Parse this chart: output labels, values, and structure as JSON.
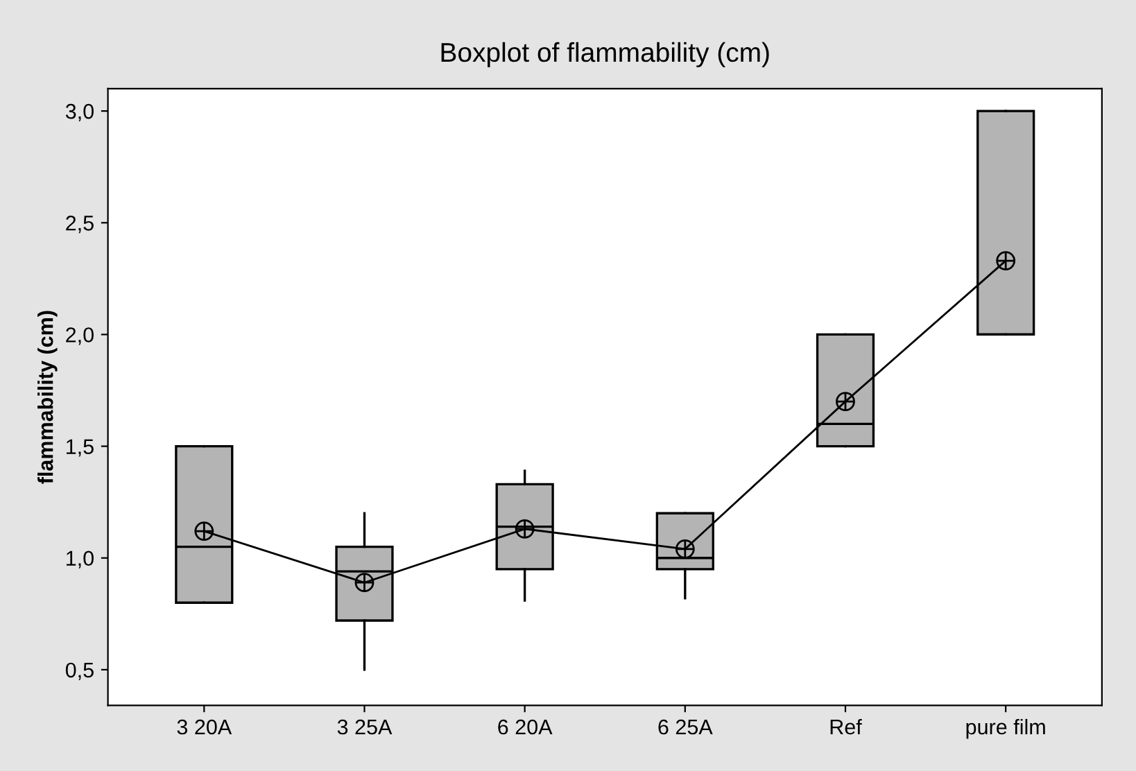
{
  "chart_data": {
    "type": "box",
    "title": "Boxplot of flammability (cm)",
    "ylabel": "flammability (cm)",
    "categories": [
      "3 20A",
      "3 25A",
      "6 20A",
      "6 25A",
      "Ref",
      "pure film"
    ],
    "boxes": [
      {
        "low": 0.8,
        "q1": 0.8,
        "median": 1.05,
        "q3": 1.5,
        "high": 1.5
      },
      {
        "low": 0.5,
        "q1": 0.72,
        "median": 0.94,
        "q3": 1.05,
        "high": 1.2
      },
      {
        "low": 0.81,
        "q1": 0.95,
        "median": 1.14,
        "q3": 1.33,
        "high": 1.39
      },
      {
        "low": 0.82,
        "q1": 0.95,
        "median": 1.0,
        "q3": 1.2,
        "high": 1.2
      },
      {
        "low": 1.5,
        "q1": 1.5,
        "median": 1.6,
        "q3": 2.0,
        "high": 2.0
      },
      {
        "low": 2.0,
        "q1": 2.0,
        "median": 2.0,
        "q3": 3.0,
        "high": 3.0
      }
    ],
    "color": "#b4b4b4",
    "series": [
      {
        "type": "line",
        "color": "#000000",
        "values": [
          1.12,
          0.89,
          1.13,
          1.04,
          1.7,
          2.33
        ]
      }
    ],
    "marker": "circle",
    "line_style": "solid",
    "ylim": [
      0.34,
      3.1
    ],
    "yticks": [
      {
        "value": 0.5,
        "label": "0,5"
      },
      {
        "value": 1.0,
        "label": "1,0"
      },
      {
        "value": 1.5,
        "label": "1,5"
      },
      {
        "value": 2.0,
        "label": "2,0"
      },
      {
        "value": 2.5,
        "label": "2,5"
      },
      {
        "value": 3.0,
        "label": "3,0"
      }
    ],
    "grid": false
  }
}
